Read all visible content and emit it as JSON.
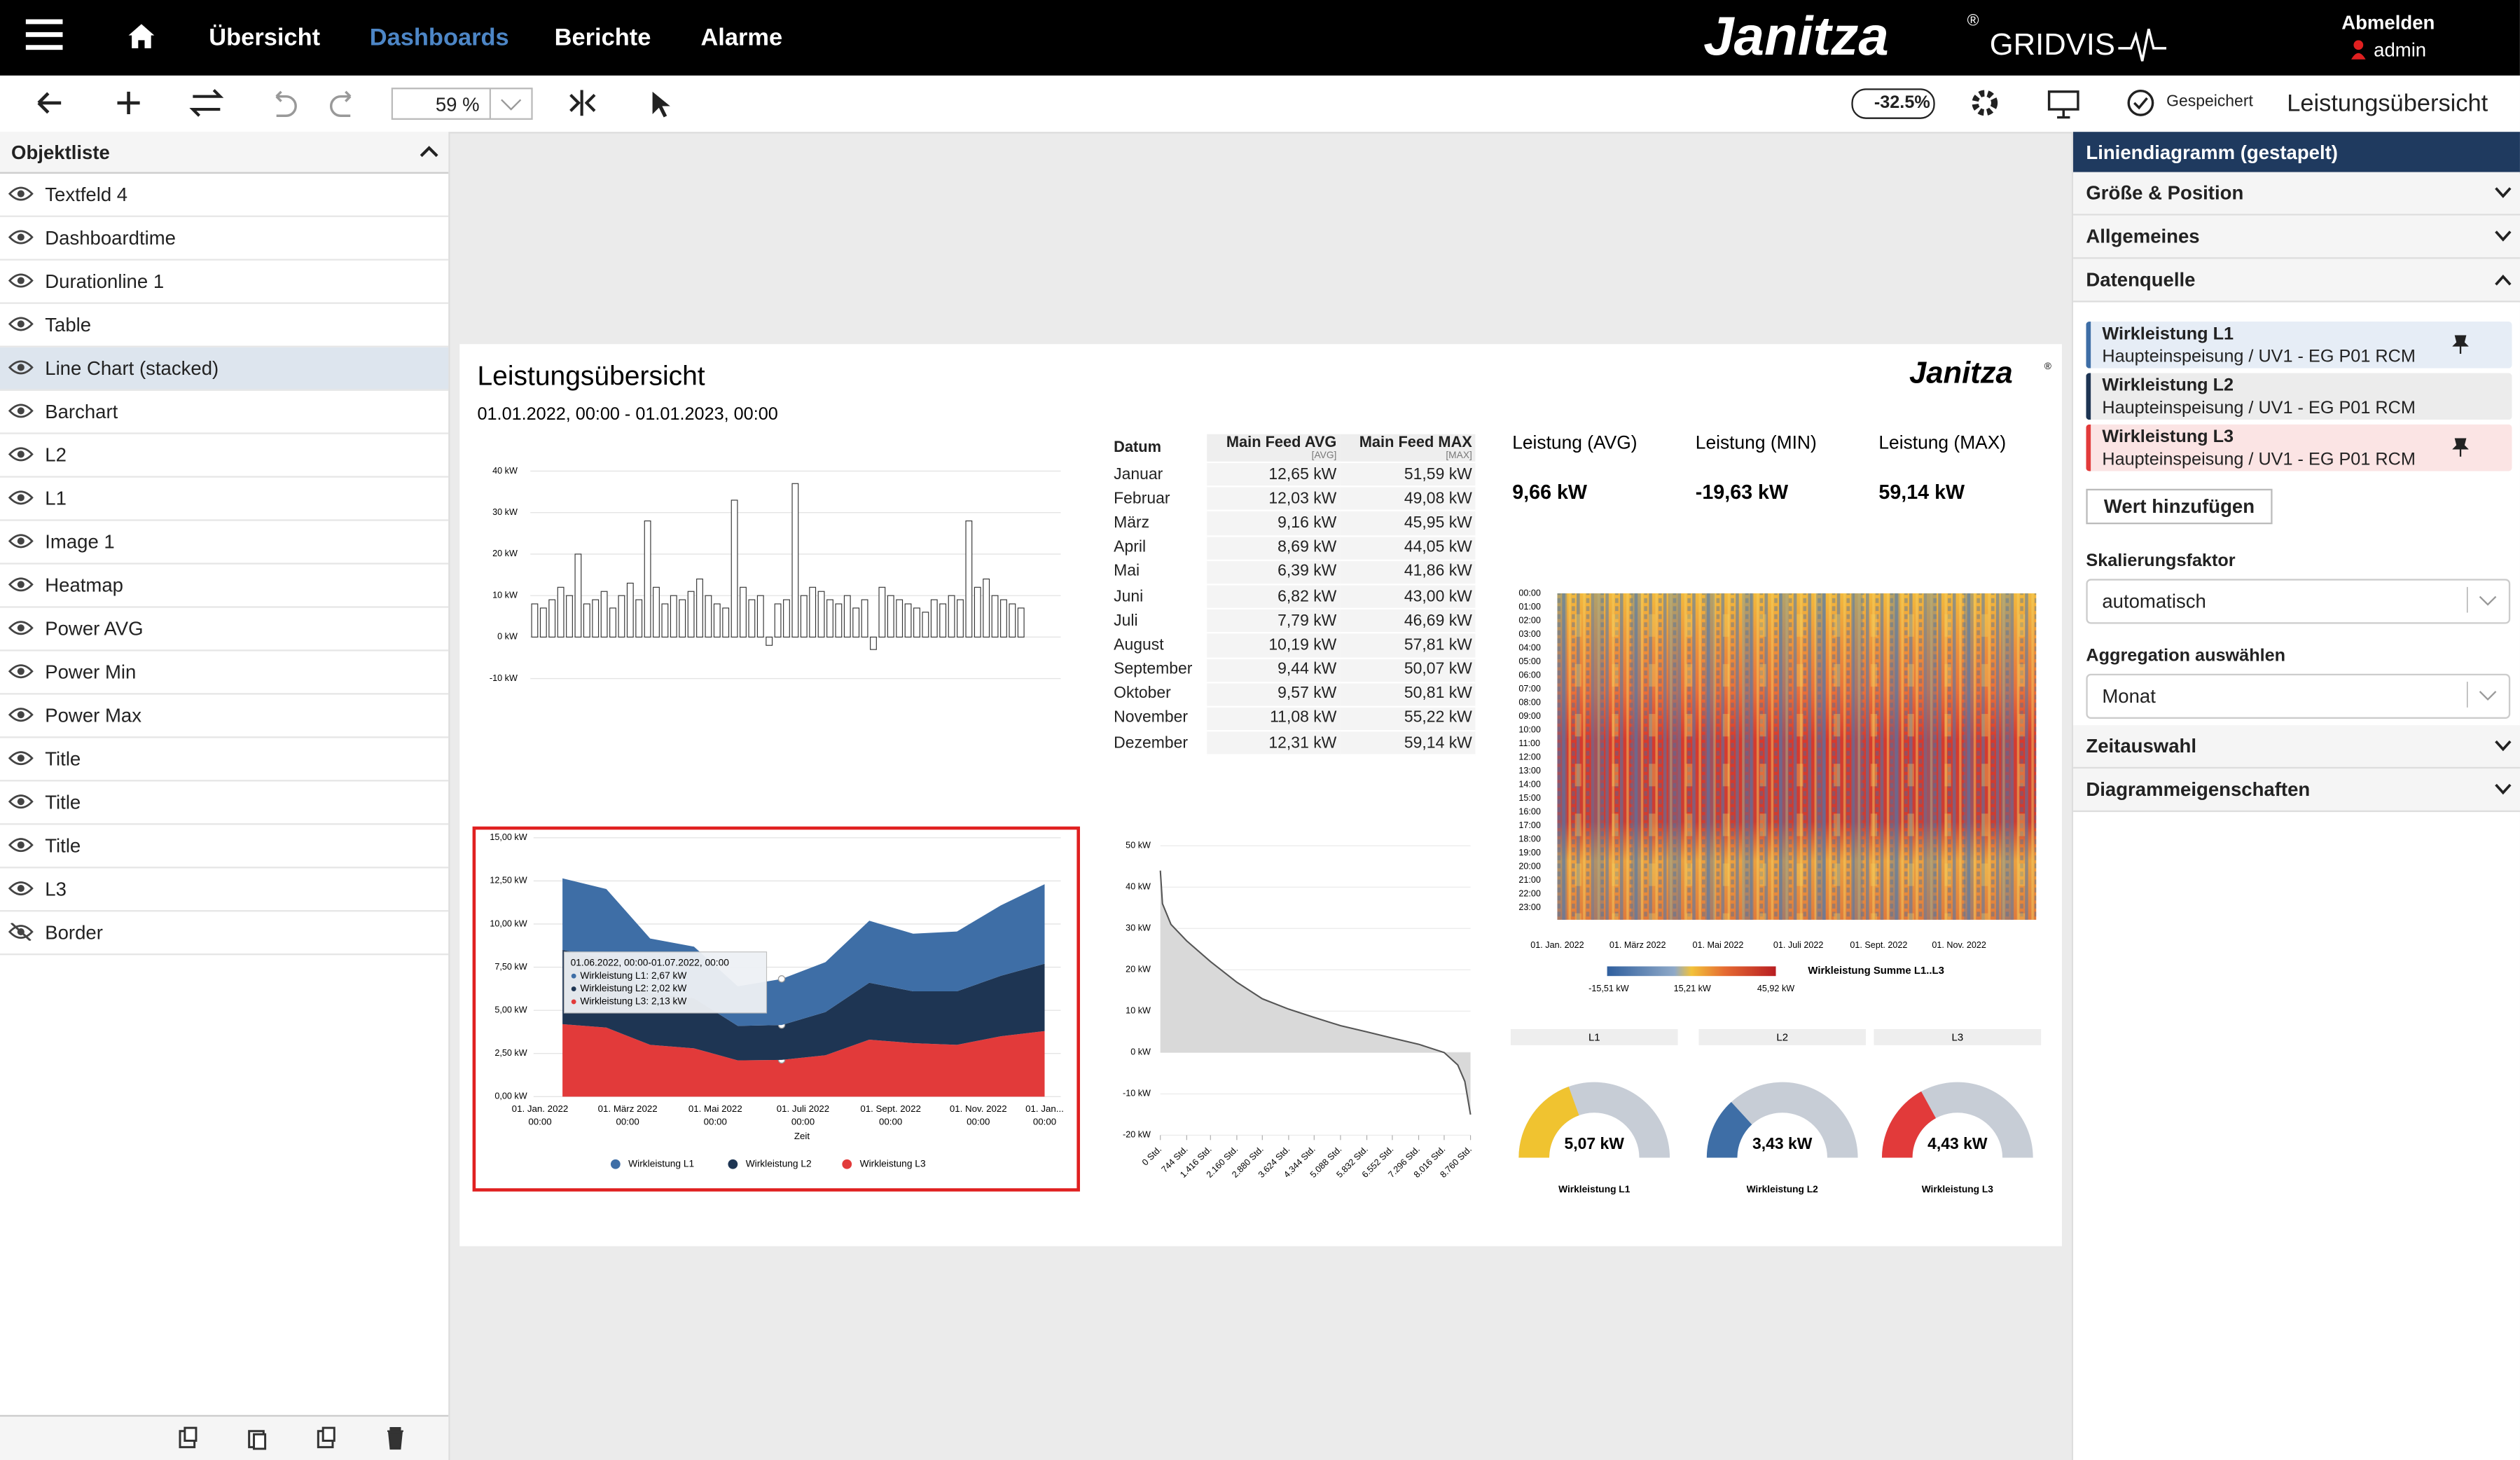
{
  "nav": {
    "items": [
      "Übersicht",
      "Dashboards",
      "Berichte",
      "Alarme"
    ],
    "active": 1,
    "brand": "Janitza",
    "brand_mark": "®",
    "product": "GRIDVIS",
    "logout": "Abmelden",
    "user": "admin"
  },
  "toolbar": {
    "zoom": "59 %",
    "load": "-32.5%",
    "status": "Gespeichert",
    "dashboard_name": "Leistungsübersicht"
  },
  "object_list": {
    "title": "Objektliste",
    "selected": 4,
    "hidden": [
      17
    ],
    "items": [
      "Textfeld 4",
      "Dashboardtime",
      "Durationline 1",
      "Table",
      "Line Chart (stacked)",
      "Barchart",
      "L2",
      "L1",
      "Image 1",
      "Heatmap",
      "Power AVG",
      "Power Min",
      "Power Max",
      "Title",
      "Title",
      "Title",
      "L3",
      "Border"
    ]
  },
  "dashboard": {
    "title": "Leistungsübersicht",
    "date_range": "01.01.2022, 00:00 - 01.01.2023, 00:00",
    "logo": "Janitza",
    "logo_mark": "®",
    "table": {
      "headers": [
        "Datum",
        "Main Feed AVG",
        "Main Feed MAX"
      ],
      "subheaders": [
        "[AVG]",
        "[MAX]"
      ],
      "rows": [
        [
          "Januar",
          "12,65 kW",
          "51,59 kW"
        ],
        [
          "Februar",
          "12,03 kW",
          "49,08 kW"
        ],
        [
          "März",
          "9,16 kW",
          "45,95 kW"
        ],
        [
          "April",
          "8,69 kW",
          "44,05 kW"
        ],
        [
          "Mai",
          "6,39 kW",
          "41,86 kW"
        ],
        [
          "Juni",
          "6,82 kW",
          "43,00 kW"
        ],
        [
          "Juli",
          "7,79 kW",
          "46,69 kW"
        ],
        [
          "August",
          "10,19 kW",
          "57,81 kW"
        ],
        [
          "September",
          "9,44 kW",
          "50,07 kW"
        ],
        [
          "Oktober",
          "9,57 kW",
          "50,81 kW"
        ],
        [
          "November",
          "11,08 kW",
          "55,22 kW"
        ],
        [
          "Dezember",
          "12,31 kW",
          "59,14 kW"
        ]
      ]
    },
    "stats": [
      {
        "label": "Leistung (AVG)",
        "value": "9,66 kW"
      },
      {
        "label": "Leistung (MIN)",
        "value": "-19,63 kW"
      },
      {
        "label": "Leistung (MAX)",
        "value": "59,14 kW"
      }
    ],
    "heatmap": {
      "hours": [
        "00:00",
        "01:00",
        "02:00",
        "03:00",
        "04:00",
        "05:00",
        "06:00",
        "07:00",
        "08:00",
        "09:00",
        "10:00",
        "11:00",
        "12:00",
        "13:00",
        "14:00",
        "15:00",
        "16:00",
        "17:00",
        "18:00",
        "19:00",
        "20:00",
        "21:00",
        "22:00",
        "23:00"
      ],
      "dates": [
        "01. Jan. 2022",
        "01. März 2022",
        "01. Mai 2022",
        "01. Juli 2022",
        "01. Sept. 2022",
        "01. Nov. 2022"
      ],
      "scale_labels": [
        "-15,51 kW",
        "15,21 kW",
        "45,92 kW"
      ],
      "legend": "Wirkleistung Summe L1..L3"
    }
  },
  "chart_data": [
    {
      "type": "bar",
      "color": "#ffffff",
      "ylim": [
        -10,
        40
      ],
      "yticks": [
        {
          "value": -10,
          "label": "-10 kW"
        },
        {
          "value": 0,
          "label": "0 kW"
        },
        {
          "value": 10,
          "label": "10 kW"
        },
        {
          "value": 20,
          "label": "20 kW"
        },
        {
          "value": 30,
          "label": "30 kW"
        },
        {
          "value": 40,
          "label": "40 kW"
        }
      ],
      "values": [
        8,
        7,
        9,
        12,
        10,
        20,
        8,
        9,
        11,
        7,
        10,
        13,
        9,
        28,
        12,
        8,
        10,
        9,
        11,
        14,
        10,
        8,
        7,
        33,
        12,
        9,
        10,
        -2,
        8,
        9,
        37,
        10,
        12,
        11,
        9,
        8,
        10,
        7,
        9,
        -3,
        12,
        10,
        9,
        8,
        7,
        6,
        9,
        8,
        10,
        9,
        28,
        12,
        14,
        10,
        9,
        8,
        7
      ]
    },
    {
      "type": "stacked-area",
      "ylim": [
        0,
        15
      ],
      "x_label": "Zeit",
      "time_label": "00:00",
      "end_label": "01. Jan...",
      "yticks": [
        {
          "value": 0,
          "label": "0,00 kW"
        },
        {
          "value": 2.5,
          "label": "2,50 kW"
        },
        {
          "value": 5,
          "label": "5,00 kW"
        },
        {
          "value": 7.5,
          "label": "7,50 kW"
        },
        {
          "value": 10,
          "label": "10,00 kW"
        },
        {
          "value": 12.5,
          "label": "12,50 kW"
        },
        {
          "value": 15,
          "label": "15,00 kW"
        }
      ],
      "categories": [
        "01. Jan. 2022",
        null,
        "01. März 2022",
        null,
        "01. Mai 2022",
        null,
        "01. Juli 2022",
        null,
        "01. Sept. 2022",
        null,
        "01. Nov. 2022",
        null
      ],
      "series": [
        {
          "name": "Wirkleistung L1",
          "color": "#3e6ea6",
          "values": [
            4.15,
            4.03,
            3.16,
            2.99,
            2.29,
            2.67,
            2.89,
            3.59,
            3.34,
            3.47,
            4.08,
            4.61
          ]
        },
        {
          "name": "Wirkleistung L2",
          "color": "#1e3553",
          "values": [
            4.3,
            4.0,
            3.0,
            2.9,
            2.0,
            2.02,
            2.5,
            3.3,
            3.0,
            3.1,
            3.5,
            3.9
          ]
        },
        {
          "name": "Wirkleistung L3",
          "color": "#e23a3a",
          "values": [
            4.2,
            4.0,
            3.0,
            2.8,
            2.1,
            2.13,
            2.4,
            3.3,
            3.1,
            3.0,
            3.5,
            3.8
          ]
        }
      ],
      "tooltip": {
        "title": "01.06.2022, 00:00-01.07.2022, 00:00",
        "lines": [
          "Wirkleistung L1: 2,67 kW",
          "Wirkleistung L2: 2,02 kW",
          "Wirkleistung L3: 2,13 kW"
        ]
      }
    },
    {
      "type": "duration-line",
      "color": "#555555",
      "fill": "#d9d9d9",
      "ylim": [
        -20,
        50
      ],
      "xlim": [
        0,
        8760
      ],
      "yticks": [
        {
          "value": -20,
          "label": "-20 kW"
        },
        {
          "value": -10,
          "label": "-10 kW"
        },
        {
          "value": 0,
          "label": "0 kW"
        },
        {
          "value": 10,
          "label": "10 kW"
        },
        {
          "value": 20,
          "label": "20 kW"
        },
        {
          "value": 30,
          "label": "30 kW"
        },
        {
          "value": 40,
          "label": "40 kW"
        },
        {
          "value": 50,
          "label": "50 kW"
        }
      ],
      "xticks": [
        {
          "value": 0,
          "label": "0 Std."
        },
        {
          "value": 744,
          "label": "744 Std."
        },
        {
          "value": 1416,
          "label": "1.416 Std."
        },
        {
          "value": 2160,
          "label": "2.160 Std."
        },
        {
          "value": 2880,
          "label": "2.880 Std."
        },
        {
          "value": 3624,
          "label": "3.624 Std."
        },
        {
          "value": 4344,
          "label": "4.344 Std."
        },
        {
          "value": 5088,
          "label": "5.088 Std."
        },
        {
          "value": 5832,
          "label": "5.832 Std."
        },
        {
          "value": 6552,
          "label": "6.552 Std."
        },
        {
          "value": 7296,
          "label": "7.296 Std."
        },
        {
          "value": 8016,
          "label": "8.016 Std."
        },
        {
          "value": 8760,
          "label": "8.760 Std."
        }
      ],
      "x": [
        0,
        60,
        300,
        744,
        1416,
        2160,
        2880,
        3624,
        4344,
        5088,
        5832,
        6552,
        7296,
        8016,
        8400,
        8600,
        8760
      ],
      "values": [
        44,
        36,
        31,
        27,
        22,
        17,
        13,
        10.5,
        8.5,
        6.5,
        5,
        3.5,
        2,
        0,
        -3,
        -7,
        -15
      ]
    },
    {
      "type": "gauge",
      "range": [
        0,
        13
      ],
      "track": "#c7cdd6",
      "titles": [
        "L1",
        "L2",
        "L3"
      ],
      "categories": [
        "Wirkleistung L1",
        "Wirkleistung L2",
        "Wirkleistung L3"
      ],
      "values": [
        5.07,
        3.43,
        4.43
      ],
      "value_labels": [
        "5,07 kW",
        "3,43 kW",
        "4,43 kW"
      ],
      "colors": [
        "#f0c330",
        "#3e6ea6",
        "#e23a3a"
      ]
    }
  ],
  "properties": {
    "title": "Liniendiagramm (gestapelt)",
    "sections": [
      "Größe & Position",
      "Allgemeines",
      "Datenquelle"
    ],
    "sources": [
      {
        "name": "Wirkleistung L1",
        "device": "Haupteinspeisung / UV1 - EG P01 RCM",
        "color": "#3e6ea6",
        "bg": "#e6edf6",
        "pinned": true
      },
      {
        "name": "Wirkleistung L2",
        "device": "Haupteinspeisung / UV1 - EG P01 RCM",
        "color": "#1e3553",
        "bg": "#ececec",
        "pinned": false
      },
      {
        "name": "Wirkleistung L3",
        "device": "Haupteinspeisung / UV1 - EG P01 RCM",
        "color": "#e23a3a",
        "bg": "#fbe4e4",
        "pinned": true
      }
    ],
    "add_value": "Wert hinzufügen",
    "scaling_label": "Skalierungsfaktor",
    "scaling_value": "automatisch",
    "aggregation_label": "Aggregation auswählen",
    "aggregation_value": "Monat",
    "bottom_sections": [
      "Zeitauswahl",
      "Diagrammeigenschaften"
    ]
  }
}
